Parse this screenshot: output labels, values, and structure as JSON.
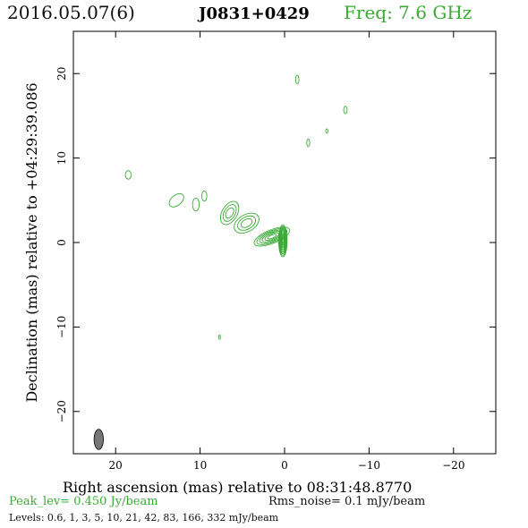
{
  "header": {
    "date": "2016.05.07(6)",
    "source": "J0831+0429",
    "frequency": "Freq:  7.6  GHz"
  },
  "footer": {
    "peak": "Peak_lev=  0.450 Jy/beam",
    "rms": "Rms_noise=  0.1 mJy/beam",
    "levels": "Levels: 0.6,    1,    3,    5,   10,   21,   42,   83,  166,  332 mJy/beam"
  },
  "colors": {
    "contour": "#3aaa35",
    "beam": "#777777",
    "axes": "#000000"
  },
  "chart_data": {
    "type": "contour",
    "title": "",
    "xlabel": "Right ascension (mas) relative to 08:31:48.8770",
    "ylabel": "Declination (mas) relative to +04:29:39.086",
    "xlim": [
      25,
      -25
    ],
    "ylim": [
      -25,
      25
    ],
    "x_ticks": [
      20,
      10,
      0,
      -10,
      -20
    ],
    "x_tick_labels": [
      "20",
      "10",
      "0",
      "−10",
      "−20"
    ],
    "y_ticks": [
      20,
      10,
      0,
      -10,
      -20
    ],
    "y_tick_labels": [
      "20",
      "10",
      "0",
      "−10",
      "−20"
    ],
    "peak_jy_per_beam": 0.45,
    "rms_noise_mjy_per_beam": 0.1,
    "contour_levels_mjy_per_beam": [
      0.6,
      1,
      3,
      5,
      10,
      21,
      42,
      83,
      166,
      332
    ],
    "beam": {
      "x": 22,
      "y": -23.3,
      "major_mas": 2.4,
      "minor_mas": 1.1,
      "pa_deg": 0
    },
    "core": {
      "x": 0.2,
      "y": 0.2
    },
    "components": [
      {
        "x": 0.2,
        "y": 0.2,
        "major_mas": 3.8,
        "minor_mas": 1.0,
        "pa_deg": 0,
        "levels": 10
      },
      {
        "x": 1.5,
        "y": 0.7,
        "major_mas": 4.5,
        "minor_mas": 1.6,
        "pa_deg": 68,
        "levels": 6
      },
      {
        "x": 4.5,
        "y": 2.3,
        "major_mas": 3.2,
        "minor_mas": 2.0,
        "pa_deg": 60,
        "levels": 3
      },
      {
        "x": 6.5,
        "y": 3.5,
        "major_mas": 3.0,
        "minor_mas": 1.8,
        "pa_deg": 30,
        "levels": 3
      },
      {
        "x": 10.5,
        "y": 4.5,
        "major_mas": 1.5,
        "minor_mas": 0.8,
        "pa_deg": 0,
        "levels": 1
      },
      {
        "x": 12.8,
        "y": 5.0,
        "major_mas": 2.0,
        "minor_mas": 1.2,
        "pa_deg": 50,
        "levels": 1
      },
      {
        "x": 9.5,
        "y": 5.5,
        "major_mas": 1.2,
        "minor_mas": 0.6,
        "pa_deg": 0,
        "levels": 1
      },
      {
        "x": 18.5,
        "y": 8.0,
        "major_mas": 1.0,
        "minor_mas": 0.7,
        "pa_deg": 0,
        "levels": 1
      },
      {
        "x": -1.5,
        "y": 19.3,
        "major_mas": 1.0,
        "minor_mas": 0.4,
        "pa_deg": 0,
        "levels": 1
      },
      {
        "x": -7.2,
        "y": 15.7,
        "major_mas": 0.9,
        "minor_mas": 0.4,
        "pa_deg": 0,
        "levels": 1
      },
      {
        "x": -2.8,
        "y": 11.8,
        "major_mas": 0.9,
        "minor_mas": 0.35,
        "pa_deg": 0,
        "levels": 1
      },
      {
        "x": -5.0,
        "y": 13.2,
        "major_mas": 0.5,
        "minor_mas": 0.25,
        "pa_deg": 0,
        "levels": 1
      },
      {
        "x": 7.7,
        "y": -11.2,
        "major_mas": 0.5,
        "minor_mas": 0.2,
        "pa_deg": 0,
        "levels": 1
      }
    ]
  }
}
